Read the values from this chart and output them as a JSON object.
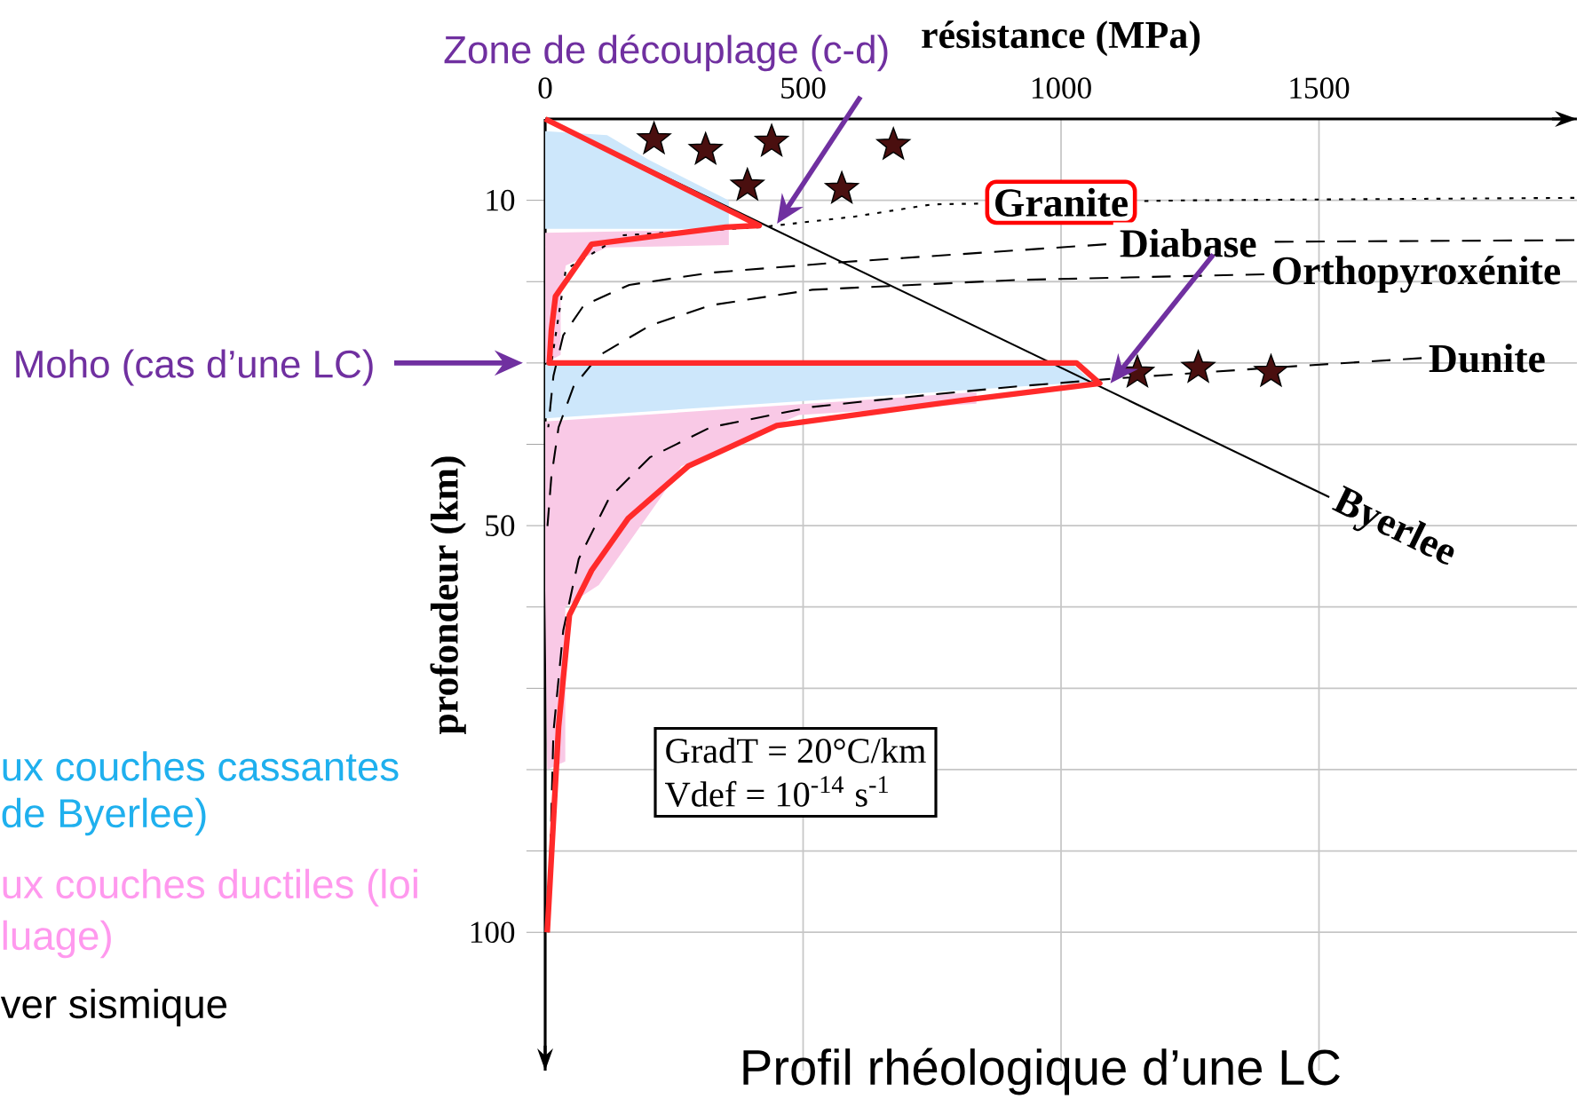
{
  "chart_data": {
    "type": "line",
    "title": "Profil rhéologique d’une LC",
    "xlabel": "résistance (MPa)",
    "ylabel": "profondeur (km)",
    "xlim": [
      0,
      2000
    ],
    "ylim": [
      117,
      0
    ],
    "xticks": [
      0,
      500,
      1000,
      1500
    ],
    "yticks": [
      10,
      {
        "value": 20,
        "label": null
      },
      {
        "value": 30,
        "label": null
      },
      {
        "value": 40,
        "label": null
      },
      50,
      {
        "value": 60,
        "label": null
      },
      {
        "value": 70,
        "label": null
      },
      {
        "value": 80,
        "label": null
      },
      {
        "value": 90,
        "label": null
      },
      100
    ],
    "grid": true,
    "series": [
      {
        "type": "area",
        "color": "#cde7fb",
        "x": [
          0,
          120,
          200,
          356,
          356,
          0
        ],
        "values": [
          1.5,
          2,
          5,
          10,
          13.5,
          13.5
        ]
      },
      {
        "type": "area",
        "color": "#cde7fb",
        "x": [
          0,
          1023,
          1060,
          0
        ],
        "values": [
          30.2,
          30.2,
          32.3,
          36.8
        ]
      },
      {
        "type": "area",
        "color": "#f9c9e6",
        "x": [
          0,
          356,
          356,
          120,
          40,
          30,
          30,
          0
        ],
        "values": [
          14,
          13.6,
          15.5,
          15.8,
          18,
          22,
          29,
          30
        ]
      },
      {
        "type": "area",
        "color": "#f9c9e6",
        "x": [
          0,
          836,
          836,
          492,
          264,
          220,
          104,
          39,
          39,
          4,
          0
        ],
        "values": [
          37.2,
          33.6,
          35,
          36.4,
          42.7,
          46.9,
          57.3,
          60,
          79,
          80,
          58
        ]
      },
      {
        "name": "Byerlee",
        "color": "#000000",
        "line_style": "solid",
        "x": [
          0,
          1520
        ],
        "values": [
          0,
          46.5
        ]
      },
      {
        "name": "Granite",
        "color": "#000000",
        "line_style": "dotted",
        "x": [
          1995,
          1250,
          750,
          600,
          419,
          300,
          150,
          90,
          40,
          20,
          12
        ],
        "values": [
          9.7,
          10.0,
          10.5,
          12.0,
          13.3,
          null,
          14.3,
          null,
          18.5,
          null,
          30
        ]
      },
      {
        "name": "Diabase",
        "color": "#000000",
        "line_style": "dashed",
        "x": [
          1995,
          1404,
          1089,
          577,
          321,
          163,
          75,
          35,
          16,
          6
        ],
        "values": [
          14.9,
          15.1,
          15.4,
          17.6,
          18.9,
          20.4,
          22.9,
          26.6,
          31.6,
          37.9
        ]
      },
      {
        "name": "Orthopyroxénite",
        "color": "#000000",
        "line_style": "dashed",
        "x": [
          1394,
          911,
          518,
          321,
          203,
          104,
          55,
          26,
          12,
          4
        ],
        "values": [
          19.1,
          19.8,
          21,
          22.9,
          25.4,
          29.1,
          32.9,
          37.9,
          44,
          50.4
        ]
      },
      {
        "name": "Dunite",
        "color": "#000000",
        "line_style": "dashed",
        "x": [
          1699,
          1404,
          1108,
          911,
          715,
          518,
          321,
          203,
          124,
          65,
          35,
          16,
          6
        ],
        "values": [
          29.4,
          30.6,
          31.9,
          32.9,
          34.1,
          35.4,
          37.9,
          41.6,
          46.6,
          54.1,
          62.9,
          75.4,
          100
        ]
      },
      {
        "color": "#ff2a2a",
        "line_style": "solid",
        "x": [
          0,
          415,
          350,
          90,
          20,
          12,
          8,
          1030,
          1075,
          807,
          449,
          277,
          161,
          90,
          47,
          26,
          4
        ],
        "values": [
          0,
          13.1,
          13.3,
          15.4,
          21.8,
          26,
          30,
          30,
          32.5,
          34.6,
          37.7,
          42.7,
          49.1,
          55.5,
          61,
          74.7,
          100
        ]
      },
      {
        "type": "scatter",
        "color": "#4a0f0f",
        "marker": "star",
        "x": [
          211,
          311,
          439,
          675,
          392,
          575,
          1148,
          1266,
          1407
        ],
        "values": [
          2.5,
          3.8,
          2.8,
          3.2,
          8.2,
          8.6,
          31.2,
          30.6,
          31.1
        ]
      }
    ],
    "annotations": [
      "Zone de découplage (c-d)",
      "Moho (cas d’une LC)",
      "GradT = 20°C/km",
      "Vdef = 10$^{-14}$ s$^{-1}$",
      "ux couches cassantes",
      "de Byerlee)",
      "ux couches ductiles (loi",
      "luage)",
      "ver sismique"
    ]
  }
}
